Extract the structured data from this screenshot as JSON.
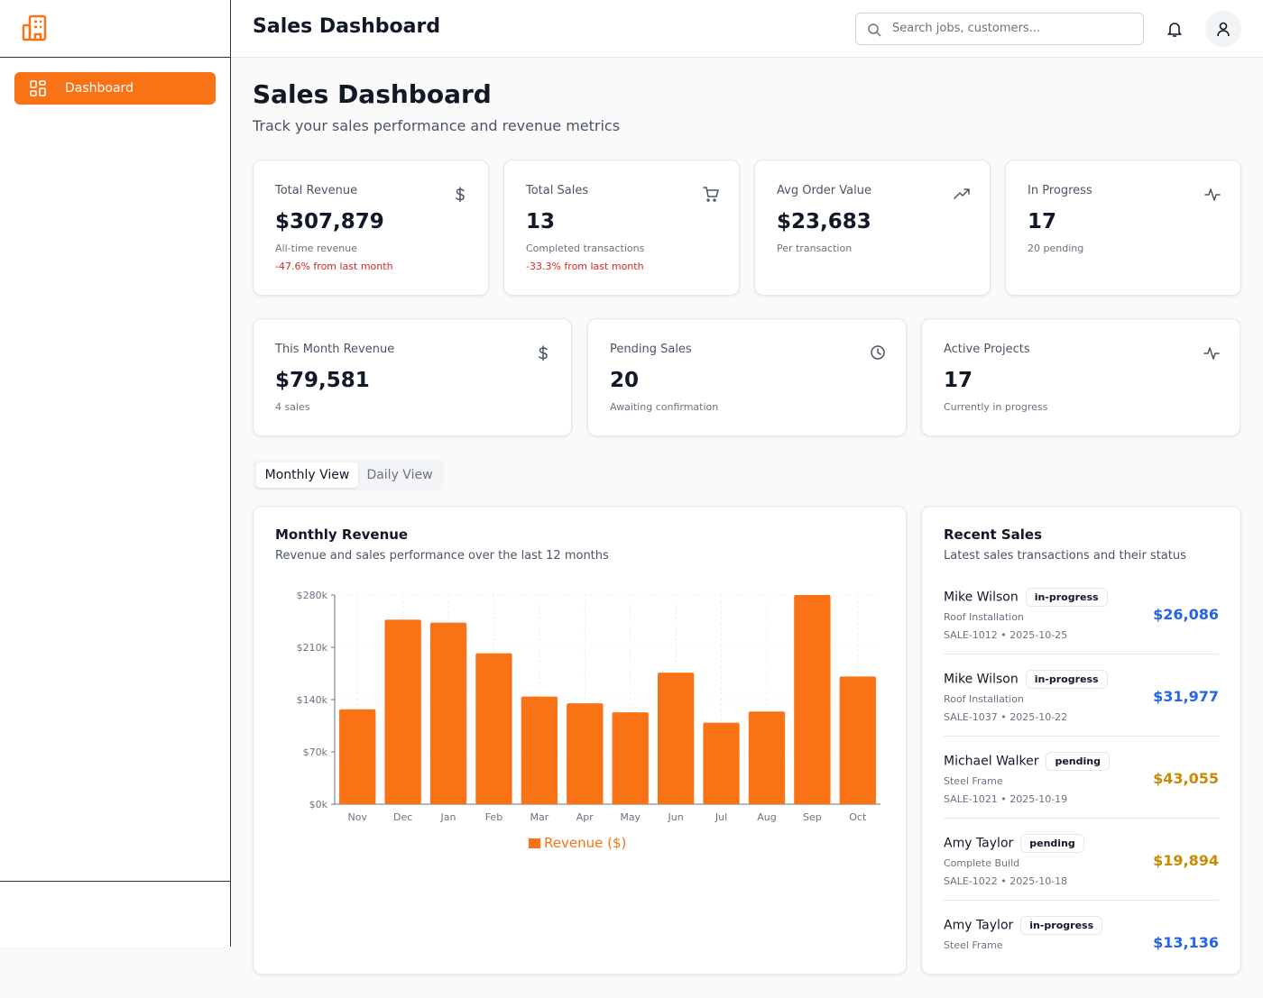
{
  "header": {
    "title": "Sales Dashboard",
    "search_placeholder": "Search jobs, customers..."
  },
  "sidebar": {
    "nav": [
      "Dashboard"
    ]
  },
  "page": {
    "title": "Sales Dashboard",
    "subtitle": "Track your sales performance and revenue metrics"
  },
  "stats": [
    {
      "label": "Total Revenue",
      "value": "$307,879",
      "note": "All-time revenue",
      "change": "-47.6% from last month"
    },
    {
      "label": "Total Sales",
      "value": "13",
      "note": "Completed transactions",
      "change": "-33.3% from last month"
    },
    {
      "label": "Avg Order Value",
      "value": "$23,683",
      "note": "Per transaction"
    },
    {
      "label": "In Progress",
      "value": "17",
      "note": "20 pending"
    }
  ],
  "stats_secondary": [
    {
      "label": "This Month Revenue",
      "value": "$79,581",
      "note": "4 sales"
    },
    {
      "label": "Pending Sales",
      "value": "20",
      "note": "Awaiting confirmation"
    },
    {
      "label": "Active Projects",
      "value": "17",
      "note": "Currently in progress"
    }
  ],
  "tabs": [
    "Monthly View",
    "Daily View"
  ],
  "chart_card": {
    "title": "Monthly Revenue",
    "subtitle": "Revenue and sales performance over the last 12 months"
  },
  "chart_data": {
    "type": "bar",
    "categories": [
      "Nov",
      "Dec",
      "Jan",
      "Feb",
      "Mar",
      "Apr",
      "May",
      "Jun",
      "Jul",
      "Aug",
      "Sep",
      "Oct"
    ],
    "series": [
      {
        "name": "Revenue ($)",
        "color": "#f97316",
        "values": [
          127000,
          247000,
          243000,
          202000,
          144000,
          135000,
          123000,
          176000,
          109000,
          124000,
          280000,
          171000
        ]
      }
    ],
    "ylim": [
      0,
      280000
    ],
    "yticks": [
      {
        "value": 0,
        "label": "$0k"
      },
      {
        "value": 70000,
        "label": "$70k"
      },
      {
        "value": 140000,
        "label": "$140k"
      },
      {
        "value": 210000,
        "label": "$210k"
      },
      {
        "value": 280000,
        "label": "$280k"
      }
    ],
    "grid": true
  },
  "recent_sales": {
    "title": "Recent Sales",
    "subtitle": "Latest sales transactions and their status",
    "items": [
      {
        "name": "Mike Wilson",
        "status": "in-progress",
        "product": "Roof Installation",
        "ref": "SALE-1012 • 2025-10-25",
        "amount": "$26,086"
      },
      {
        "name": "Mike Wilson",
        "status": "in-progress",
        "product": "Roof Installation",
        "ref": "SALE-1037 • 2025-10-22",
        "amount": "$31,977"
      },
      {
        "name": "Michael Walker",
        "status": "pending",
        "product": "Steel Frame",
        "ref": "SALE-1021 • 2025-10-19",
        "amount": "$43,055"
      },
      {
        "name": "Amy Taylor",
        "status": "pending",
        "product": "Complete Build",
        "ref": "SALE-1022 • 2025-10-18",
        "amount": "$19,894"
      },
      {
        "name": "Amy Taylor",
        "status": "in-progress",
        "product": "Steel Frame",
        "amount": "$13,136"
      }
    ]
  }
}
